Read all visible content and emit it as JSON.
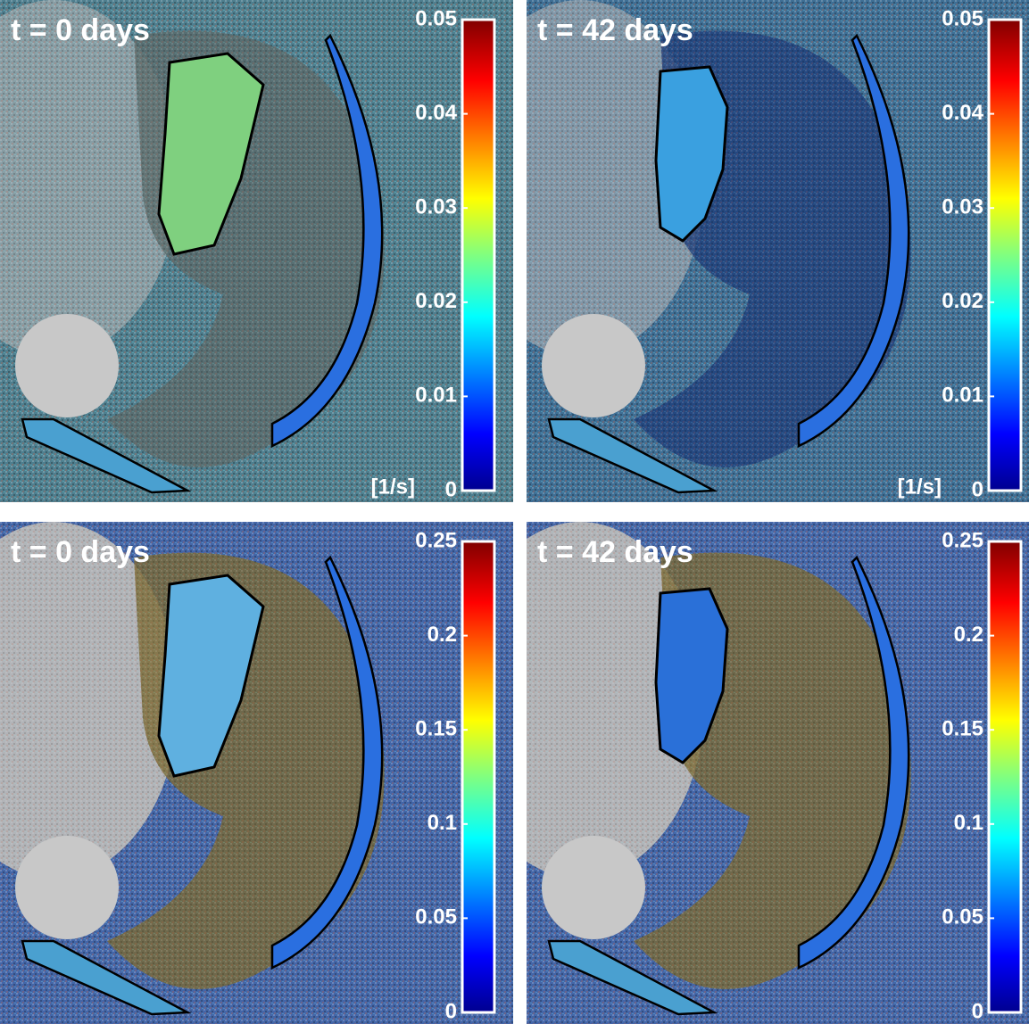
{
  "panels": [
    {
      "title": "t = 0 days",
      "colorbar": {
        "lim": [
          0,
          0.05
        ],
        "ticks": [
          0,
          0.01,
          0.02,
          0.03,
          0.04,
          0.05
        ]
      },
      "unit": "[1/s]"
    },
    {
      "title": "t = 42 days",
      "colorbar": {
        "lim": [
          0,
          0.05
        ],
        "ticks": [
          0,
          0.01,
          0.02,
          0.03,
          0.04,
          0.05
        ]
      },
      "unit": "[1/s]"
    },
    {
      "title": "t = 0 days",
      "colorbar": {
        "lim": [
          0,
          0.25
        ],
        "ticks": [
          0,
          0.05,
          0.1,
          0.15,
          0.2,
          0.25
        ]
      }
    },
    {
      "title": "t = 42 days",
      "colorbar": {
        "lim": [
          0,
          0.25
        ],
        "ticks": [
          0,
          0.05,
          0.1,
          0.15,
          0.2,
          0.25
        ]
      }
    }
  ]
}
